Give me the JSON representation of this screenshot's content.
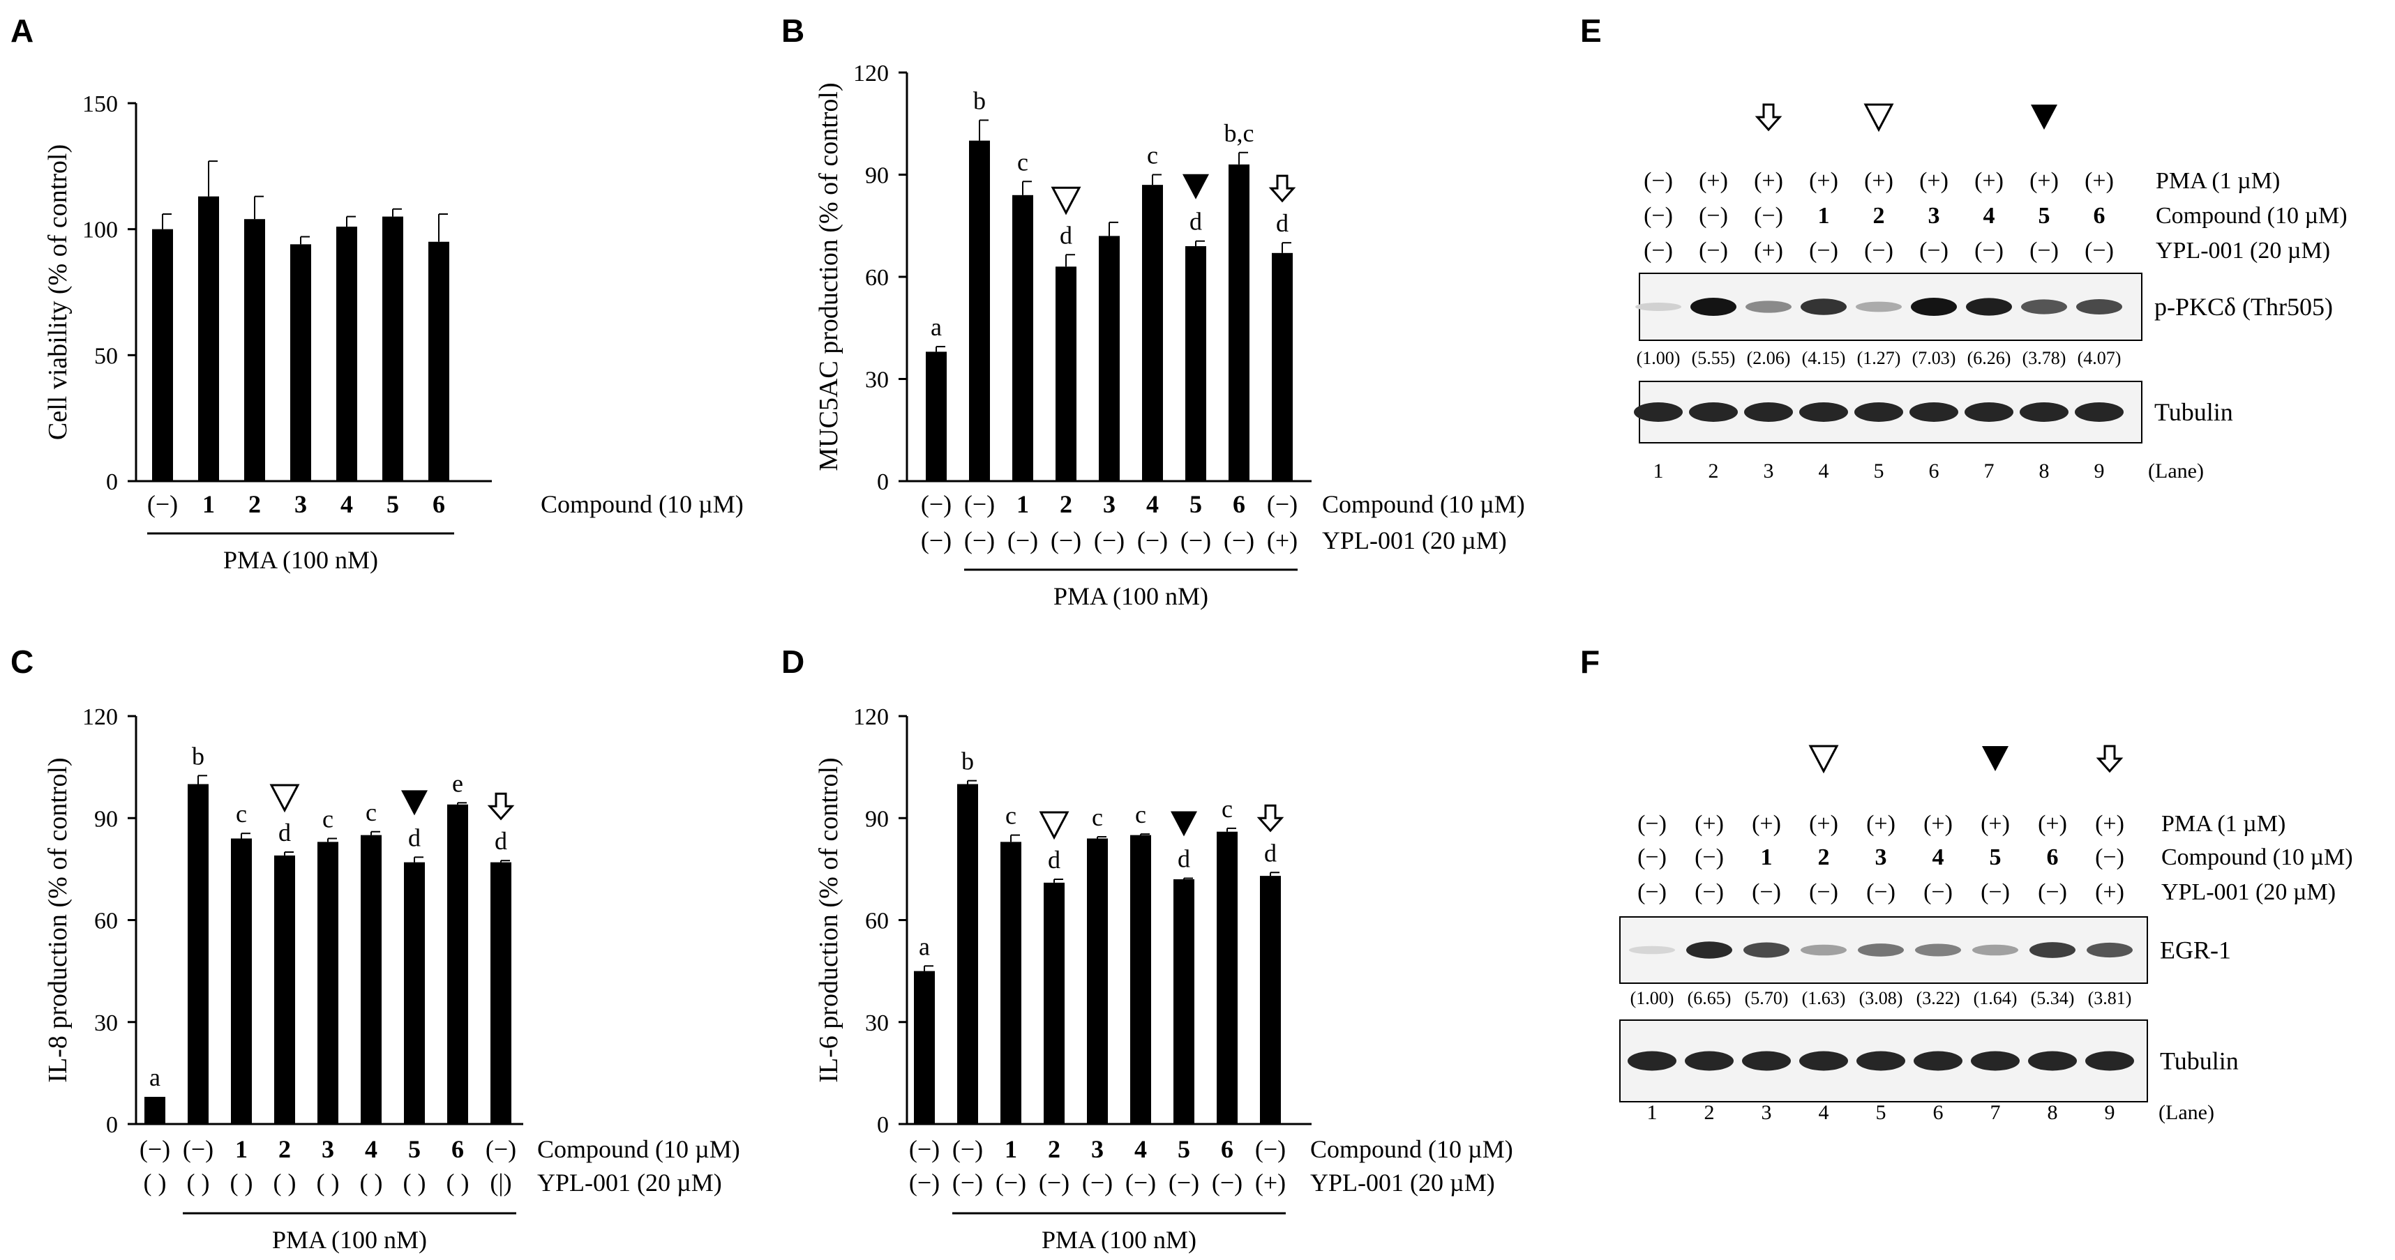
{
  "panels": {
    "A": "A",
    "B": "B",
    "C": "C",
    "D": "D",
    "E": "E",
    "F": "F"
  },
  "chart_data": [
    {
      "panel": "A",
      "type": "bar",
      "ylabel": "Cell viability (% of control)",
      "ylim": [
        0,
        150
      ],
      "yticks": [
        0,
        50,
        100,
        150
      ],
      "categories": [
        "(−)",
        "1",
        "2",
        "3",
        "4",
        "5",
        "6"
      ],
      "values": [
        100,
        113,
        104,
        94,
        101,
        105,
        95
      ],
      "errors": [
        6,
        14,
        9,
        3,
        4,
        3,
        11
      ],
      "letters": [
        "",
        "",
        "",
        "",
        "",
        "",
        ""
      ],
      "markers": [
        "",
        "",
        "",
        "",
        "",
        "",
        ""
      ],
      "rows": [
        {
          "label": "Compound (10 µM)",
          "cells": [
            "(−)",
            "1",
            "2",
            "3",
            "4",
            "5",
            "6"
          ]
        }
      ],
      "pma_label": "PMA (100 nM)",
      "pma_span": [
        0,
        6
      ]
    },
    {
      "panel": "B",
      "type": "bar",
      "ylabel": "MUC5AC production (% of control)",
      "ylim": [
        0,
        120
      ],
      "yticks": [
        0,
        30,
        60,
        90,
        120
      ],
      "categories": [
        "(−)",
        "(−)",
        "1",
        "2",
        "3",
        "4",
        "5",
        "6",
        "(−)"
      ],
      "values": [
        38,
        100,
        84,
        63,
        72,
        87,
        69,
        93,
        67
      ],
      "errors": [
        1.5,
        6,
        4,
        3.5,
        4,
        3,
        1.5,
        3.5,
        3
      ],
      "letters": [
        "a",
        "b",
        "c",
        "d",
        "",
        "c",
        "d",
        "b,c",
        "d"
      ],
      "markers": [
        "",
        "",
        "",
        "open",
        "",
        "",
        "filled",
        "",
        "arrow"
      ],
      "rows": [
        {
          "label": "Compound (10 µM)",
          "cells": [
            "(−)",
            "(−)",
            "1",
            "2",
            "3",
            "4",
            "5",
            "6",
            "(−)"
          ]
        },
        {
          "label": "YPL-001 (20 µM)",
          "cells": [
            "(−)",
            "(−)",
            "(−)",
            "(−)",
            "(−)",
            "(−)",
            "(−)",
            "(−)",
            "(+)"
          ]
        }
      ],
      "pma_label": "PMA (100 nM)",
      "pma_span": [
        1,
        8
      ]
    },
    {
      "panel": "C",
      "type": "bar",
      "ylabel": "IL-8 production (% of control)",
      "ylim": [
        0,
        120
      ],
      "yticks": [
        0,
        30,
        60,
        90,
        120
      ],
      "categories": [
        "(−)",
        "(−)",
        "1",
        "2",
        "3",
        "4",
        "5",
        "6",
        "(−)"
      ],
      "values": [
        8,
        100,
        84,
        79,
        83,
        85,
        77,
        94,
        77
      ],
      "errors": [
        0,
        2.5,
        1.5,
        1,
        1,
        1,
        1.5,
        0.5,
        0.5
      ],
      "letters": [
        "a",
        "b",
        "c",
        "d",
        "c",
        "c",
        "d",
        "e",
        "d"
      ],
      "markers": [
        "",
        "",
        "",
        "open",
        "",
        "",
        "filled",
        "",
        "arrow"
      ],
      "rows": [
        {
          "label": "Compound (10 µM)",
          "cells": [
            "(−)",
            "(−)",
            "1",
            "2",
            "3",
            "4",
            "5",
            "6",
            "(−)"
          ]
        },
        {
          "label": "YPL-001 (20 µM)",
          "cells": [
            "( )",
            "( )",
            "( )",
            "( )",
            "( )",
            "( )",
            "( )",
            "( )",
            "(|)"
          ]
        }
      ],
      "pma_label": "PMA (100 nM)",
      "pma_span": [
        1,
        8
      ]
    },
    {
      "panel": "D",
      "type": "bar",
      "ylabel": "IL-6 production (% of control)",
      "ylim": [
        0,
        120
      ],
      "yticks": [
        0,
        30,
        60,
        90,
        120
      ],
      "categories": [
        "(−)",
        "(−)",
        "1",
        "2",
        "3",
        "4",
        "5",
        "6",
        "(−)"
      ],
      "values": [
        45,
        100,
        83,
        71,
        84,
        85,
        72,
        86,
        73
      ],
      "errors": [
        1.5,
        1,
        2,
        1,
        0.5,
        0.3,
        0.3,
        1,
        1
      ],
      "letters": [
        "a",
        "b",
        "c",
        "d",
        "c",
        "c",
        "d",
        "c",
        "d"
      ],
      "markers": [
        "",
        "",
        "",
        "open",
        "",
        "",
        "filled",
        "",
        "arrow"
      ],
      "rows": [
        {
          "label": "Compound (10 µM)",
          "cells": [
            "(−)",
            "(−)",
            "1",
            "2",
            "3",
            "4",
            "5",
            "6",
            "(−)"
          ]
        },
        {
          "label": "YPL-001 (20 µM)",
          "cells": [
            "(−)",
            "(−)",
            "(−)",
            "(−)",
            "(−)",
            "(−)",
            "(−)",
            "(−)",
            "(+)"
          ]
        }
      ],
      "pma_label": "PMA (100 nM)",
      "pma_span": [
        1,
        8
      ]
    }
  ],
  "blots": [
    {
      "panel": "E",
      "markers": [
        "",
        "",
        "arrow",
        "",
        "open",
        "",
        "",
        "filled",
        ""
      ],
      "rows": [
        {
          "label": "PMA (1 µM)",
          "cells": [
            "(−)",
            "(+)",
            "(+)",
            "(+)",
            "(+)",
            "(+)",
            "(+)",
            "(+)",
            "(+)"
          ]
        },
        {
          "label": "Compound (10 µM)",
          "cells": [
            "(−)",
            "(−)",
            "(−)",
            "1",
            "2",
            "3",
            "4",
            "5",
            "6"
          ]
        },
        {
          "label": "YPL-001 (20 µM)",
          "cells": [
            "(−)",
            "(−)",
            "(+)",
            "(−)",
            "(−)",
            "(−)",
            "(−)",
            "(−)",
            "(−)"
          ]
        }
      ],
      "band1_label": "p-PKCδ (Thr505)",
      "band1_intensity": [
        0.12,
        1.0,
        0.45,
        0.85,
        0.3,
        1.0,
        0.95,
        0.7,
        0.75
      ],
      "band1_quant": [
        "(1.00)",
        "(5.55)",
        "(2.06)",
        "(4.15)",
        "(1.27)",
        "(7.03)",
        "(6.26)",
        "(3.78)",
        "(4.07)"
      ],
      "band2_label": "Tubulin",
      "lanes": [
        "1",
        "2",
        "3",
        "4",
        "5",
        "6",
        "7",
        "8",
        "9"
      ],
      "lane_label": "(Lane)"
    },
    {
      "panel": "F",
      "markers": [
        "",
        "",
        "",
        "open",
        "",
        "",
        "filled",
        "",
        "arrow"
      ],
      "rows": [
        {
          "label": "PMA (1 µM)",
          "cells": [
            "(−)",
            "(+)",
            "(+)",
            "(+)",
            "(+)",
            "(+)",
            "(+)",
            "(+)",
            "(+)"
          ]
        },
        {
          "label": "Compound (10 µM)",
          "cells": [
            "(−)",
            "(−)",
            "1",
            "2",
            "3",
            "4",
            "5",
            "6",
            "(−)"
          ]
        },
        {
          "label": "YPL-001 (20 µM)",
          "cells": [
            "(−)",
            "(−)",
            "(−)",
            "(−)",
            "(−)",
            "(−)",
            "(−)",
            "(−)",
            "(+)"
          ]
        }
      ],
      "band1_label": "EGR-1",
      "band1_intensity": [
        0.1,
        0.9,
        0.75,
        0.35,
        0.55,
        0.5,
        0.35,
        0.8,
        0.7
      ],
      "band1_quant": [
        "(1.00)",
        "(6.65)",
        "(5.70)",
        "(1.63)",
        "(3.08)",
        "(3.22)",
        "(1.64)",
        "(5.34)",
        "(3.81)"
      ],
      "band2_label": "Tubulin",
      "lanes": [
        "1",
        "2",
        "3",
        "4",
        "5",
        "6",
        "7",
        "8",
        "9"
      ],
      "lane_label": "(Lane)"
    }
  ]
}
